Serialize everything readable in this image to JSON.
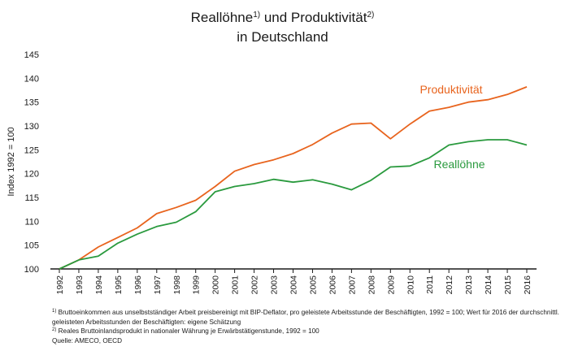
{
  "title": {
    "part1": "Reallöhne",
    "mark1": "1)",
    "part2": " und Produktivität",
    "mark2": "2)",
    "line2": "in Deutschland"
  },
  "footnotes": {
    "note1_mark": "1)",
    "note1_text": " Bruttoeinkommen aus unselbstständiger Arbeit preisbereinigt mit BIP-Deflator, pro geleistete Arbeitsstunde der Beschäftigten, 1992 = 100; Wert für 2016 der durchschnittl. geleisteten Arbeitsstunden der Beschäftigten: eigene Schätzung",
    "note2_mark": "2)",
    "note2_text": " Reales Bruttoinlandsprodukt in nationaler Währung je Erwärbstätigenstunde, 1992 = 100",
    "source": "Quelle: AMECO, OECD"
  },
  "chart_data": {
    "type": "line",
    "ylabel": "Index 1992 = 100",
    "xlabel": "",
    "ylim": [
      100,
      145
    ],
    "yticks": [
      "100",
      "105",
      "110",
      "115",
      "120",
      "125",
      "130",
      "135",
      "140",
      "145"
    ],
    "x": [
      "1992",
      "1993",
      "1994",
      "1995",
      "1996",
      "1997",
      "1998",
      "1999",
      "2000",
      "2001",
      "2002",
      "2003",
      "2004",
      "2005",
      "2006",
      "2007",
      "2008",
      "2009",
      "2010",
      "2011",
      "2012",
      "2013",
      "2014",
      "2015",
      "2016"
    ],
    "grid": false,
    "series": [
      {
        "name": "Produktivität",
        "color": "#e8641e",
        "values": [
          100.0,
          101.9,
          104.6,
          106.6,
          108.6,
          111.6,
          112.9,
          114.4,
          117.3,
          120.5,
          121.9,
          122.9,
          124.2,
          126.1,
          128.5,
          130.4,
          130.6,
          127.3,
          130.4,
          133.1,
          133.9,
          135.0,
          135.5,
          136.6,
          138.2
        ]
      },
      {
        "name": "Reallöhne",
        "color": "#2a9a3e",
        "values": [
          100.0,
          101.9,
          102.7,
          105.4,
          107.3,
          108.9,
          109.8,
          112.0,
          116.2,
          117.3,
          117.9,
          118.8,
          118.2,
          118.7,
          117.8,
          116.6,
          118.6,
          121.4,
          121.6,
          123.3,
          126.0,
          126.7,
          127.1,
          127.1,
          126.0
        ]
      }
    ]
  }
}
